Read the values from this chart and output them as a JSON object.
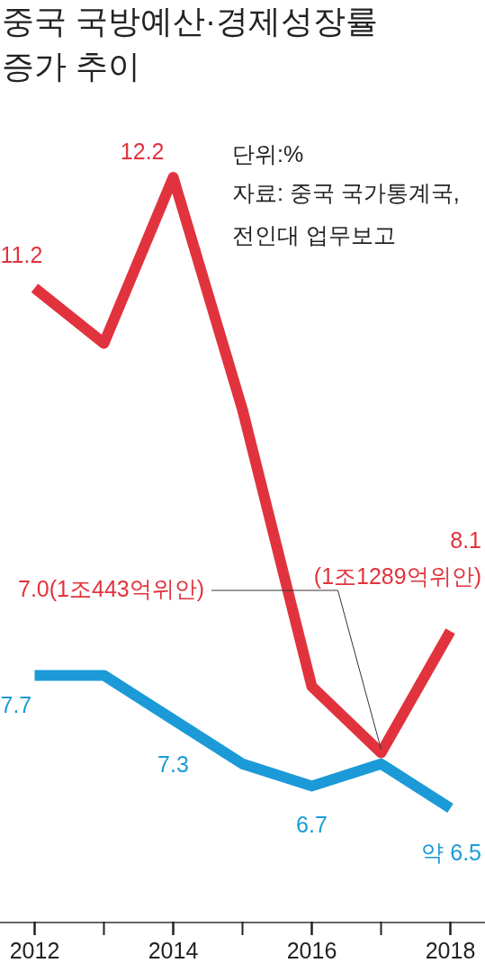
{
  "chart_data": {
    "type": "line",
    "title": "중국 국방예산·경제성장률\n증가 추이",
    "annotations": [
      "단위:%",
      "자료: 중국 국가통계국,\n전인대 업무보고"
    ],
    "x": [
      2012,
      2013,
      2014,
      2015,
      2016,
      2017,
      2018
    ],
    "xlim": [
      2011.5,
      2018.5
    ],
    "xticks": [
      2012,
      2014,
      2016,
      2018
    ],
    "tick_labels": "x",
    "series": [
      {
        "color": "#e1333d",
        "values": [
          11.2,
          10.7,
          12.2,
          10.1,
          7.6,
          7.0,
          8.1
        ],
        "value_labels": [
          "11.2",
          null,
          "12.2",
          null,
          null,
          "7.0(1조443억위안)",
          "8.1\n(1조1289억위안)"
        ]
      },
      {
        "color": "#1b9ad7",
        "values": [
          7.7,
          7.7,
          7.3,
          6.9,
          6.7,
          6.9,
          6.5
        ],
        "value_labels": [
          "7.7",
          null,
          "7.3",
          null,
          "6.7",
          null,
          "약 6.5"
        ]
      }
    ]
  }
}
